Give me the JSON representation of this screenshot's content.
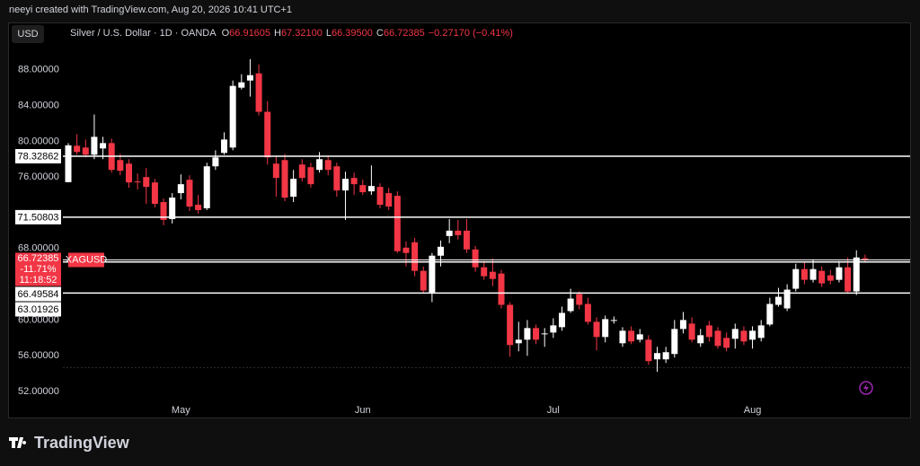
{
  "header": {
    "credit": "neeyi created with TradingView.com, Aug 20, 2026 10:41 UTC+1",
    "currency_button": "USD",
    "logo": "TradingView"
  },
  "legend": {
    "symbol": "Silver / U.S. Dollar · 1D · OANDA",
    "items": [
      {
        "label": "O",
        "value": "66.91605"
      },
      {
        "label": "H",
        "value": "67.32100"
      },
      {
        "label": "L",
        "value": "66.39500"
      },
      {
        "label": "C",
        "value": "66.72385"
      }
    ],
    "change": "−0.27170 (−0.41%)"
  },
  "chart_data": {
    "type": "candlestick",
    "categories": [
      null,
      null,
      null,
      null,
      null,
      null,
      null,
      null,
      null,
      null,
      null,
      null,
      null,
      "May",
      null,
      null,
      null,
      null,
      null,
      null,
      null,
      null,
      null,
      null,
      null,
      null,
      null,
      null,
      null,
      null,
      null,
      null,
      null,
      null,
      "Jun",
      null,
      null,
      null,
      null,
      null,
      null,
      null,
      null,
      null,
      null,
      null,
      null,
      null,
      null,
      null,
      null,
      null,
      null,
      null,
      null,
      null,
      "Jul",
      null,
      null,
      null,
      null,
      null,
      null,
      null,
      null,
      null,
      null,
      null,
      null,
      null,
      null,
      null,
      null,
      null,
      null,
      null,
      null,
      null,
      null,
      "Aug",
      null,
      null,
      null,
      null,
      null,
      null,
      null,
      null,
      null,
      null,
      null,
      null,
      null
    ],
    "open": [
      75.43,
      79.5,
      79.3,
      78.5,
      79.2,
      79.8,
      77.9,
      77.5,
      75.5,
      76.0,
      75.4,
      73.2,
      71.3,
      74.2,
      75.7,
      72.9,
      72.5,
      77.2,
      78.7,
      79.3,
      86.0,
      86.8,
      87.6,
      83.3,
      77.5,
      77.9,
      73.8,
      77.4,
      77.1,
      76.8,
      77.9,
      77.2,
      74.5,
      75.9,
      75.1,
      74.4,
      74.9,
      74.2,
      73.9,
      68.1,
      68.7,
      65.5,
      63.1,
      67.2,
      69.4,
      70.0,
      70.0,
      67.9,
      65.9,
      65.4,
      65.2,
      61.7,
      57.4,
      57.8,
      59.1,
      58.4,
      58.6,
      59.2,
      61.0,
      62.9,
      61.8,
      59.8,
      58.1,
      59.9,
      57.4,
      58.8,
      57.8,
      57.8,
      55.6,
      55.6,
      56.2,
      59.0,
      59.6,
      57.4,
      59.4,
      58.8,
      58.0,
      57.9,
      58.8,
      57.8,
      58.0,
      59.5,
      61.7,
      61.3,
      63.5,
      65.7,
      64.5,
      65.5,
      65.0,
      64.5,
      65.9,
      63.2,
      66.91605
    ],
    "high": [
      79.8,
      80.8,
      80.2,
      83.0,
      80.5,
      80.3,
      78.6,
      78.0,
      76.4,
      77.0,
      75.8,
      73.6,
      74.2,
      76.3,
      76.2,
      74.0,
      77.6,
      79.0,
      81.0,
      86.8,
      87.5,
      89.2,
      88.6,
      84.5,
      78.4,
      78.6,
      76.8,
      78.0,
      77.6,
      78.8,
      78.4,
      77.6,
      76.6,
      76.5,
      75.7,
      77.3,
      75.3,
      74.8,
      74.4,
      68.8,
      69.2,
      66.0,
      67.5,
      68.9,
      71.3,
      71.2,
      71.3,
      68.3,
      66.6,
      66.9,
      65.6,
      62.0,
      59.8,
      60.0,
      59.5,
      59.1,
      60.2,
      61.5,
      63.5,
      63.2,
      62.5,
      60.3,
      60.5,
      60.4,
      59.2,
      59.3,
      59.0,
      58.3,
      57.0,
      57.0,
      60.0,
      60.9,
      60.3,
      59.0,
      59.9,
      59.2,
      58.6,
      59.6,
      59.3,
      59.3,
      60.0,
      62.5,
      63.6,
      64.0,
      66.3,
      66.5,
      66.8,
      66.0,
      65.6,
      66.6,
      67.0,
      67.8,
      67.321
    ],
    "low": [
      75.4,
      78.5,
      78.2,
      78.0,
      78.0,
      76.5,
      76.2,
      74.8,
      74.6,
      73.0,
      72.6,
      70.6,
      70.8,
      73.5,
      72.2,
      71.9,
      72.3,
      76.8,
      78.5,
      79.0,
      85.8,
      85.0,
      82.9,
      77.4,
      73.8,
      73.3,
      73.2,
      75.5,
      74.8,
      76.5,
      76.2,
      73.8,
      71.2,
      74.0,
      74.0,
      74.0,
      72.5,
      72.3,
      67.5,
      66.0,
      64.9,
      63.0,
      62.0,
      66.0,
      68.6,
      69.0,
      67.5,
      65.4,
      64.5,
      63.8,
      61.3,
      55.9,
      56.5,
      56.0,
      57.3,
      57.0,
      58.0,
      58.8,
      60.8,
      61.2,
      59.5,
      56.6,
      57.5,
      59.6,
      57.0,
      57.3,
      57.5,
      55.0,
      54.2,
      55.2,
      55.8,
      58.5,
      57.5,
      57.0,
      57.6,
      56.8,
      56.5,
      56.8,
      57.2,
      56.8,
      57.6,
      59.3,
      61.5,
      61.0,
      63.2,
      64.0,
      64.2,
      63.7,
      64.0,
      64.2,
      63.0,
      62.8,
      66.395
    ],
    "close": [
      79.55,
      78.8,
      78.5,
      80.5,
      79.8,
      76.8,
      76.7,
      75.4,
      75.4,
      74.9,
      73.0,
      71.2,
      73.7,
      75.2,
      72.7,
      72.3,
      77.2,
      78.2,
      80.2,
      86.2,
      86.6,
      87.4,
      83.3,
      78.2,
      75.9,
      73.7,
      75.8,
      75.9,
      75.2,
      78.0,
      76.8,
      74.5,
      75.8,
      75.2,
      74.3,
      75.0,
      72.9,
      72.7,
      67.7,
      67.5,
      65.5,
      63.3,
      67.2,
      68.2,
      70.0,
      69.5,
      67.9,
      65.9,
      64.9,
      64.6,
      61.7,
      57.2,
      57.8,
      59.1,
      57.8,
      58.5,
      59.4,
      60.8,
      62.4,
      61.7,
      59.8,
      58.1,
      60.1,
      60.0,
      58.8,
      57.6,
      58.4,
      55.4,
      56.3,
      56.4,
      59.0,
      60.0,
      57.8,
      58.3,
      58.1,
      57.1,
      56.9,
      59.0,
      57.6,
      58.8,
      59.4,
      61.8,
      62.6,
      63.4,
      65.7,
      64.5,
      65.7,
      64.1,
      64.4,
      65.9,
      63.2,
      67.0,
      66.72385
    ],
    "up_color": "#ffffff",
    "down_color": "#f23645",
    "ylim": [
      51.1,
      93.3
    ],
    "yticks": [
      {
        "value": 88,
        "label": "88.00000"
      },
      {
        "value": 84,
        "label": "84.00000"
      },
      {
        "value": 80,
        "label": "80.00000"
      },
      {
        "value": 76,
        "label": "76.00000"
      },
      {
        "value": 68,
        "label": "68.00000"
      },
      {
        "value": 60,
        "label": "60.00000"
      },
      {
        "value": 56,
        "label": "56.00000"
      },
      {
        "value": 52,
        "label": "52.00000"
      }
    ],
    "grid": false,
    "levels": [
      78.32862,
      71.50803,
      66.49584,
      63.01926
    ],
    "price_label": {
      "value": 66.72385,
      "symbol": "XAGUSD",
      "change": "-11.71%",
      "countdown": "11:18:52"
    }
  }
}
